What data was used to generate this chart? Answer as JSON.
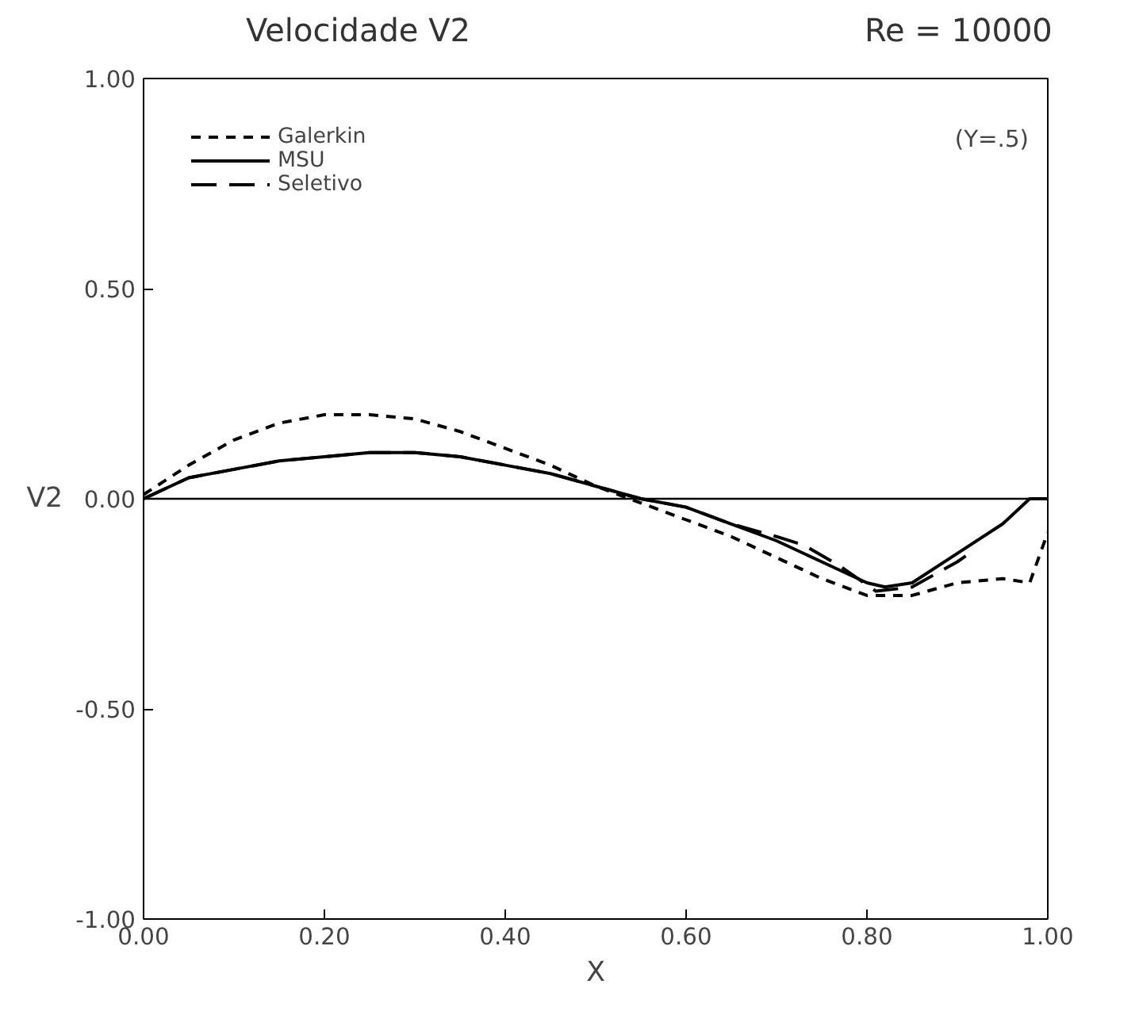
{
  "chart_data": {
    "type": "line",
    "title": "Velocidade V2",
    "subtitle": "Re = 10000",
    "xlabel": "X",
    "ylabel": "V2",
    "annotations": [
      "(Y=.5)"
    ],
    "xlim": [
      0,
      1
    ],
    "ylim": [
      -1,
      1
    ],
    "xticks": [
      {
        "value": 0,
        "label": "0.00"
      },
      {
        "value": 0.2,
        "label": "0.20"
      },
      {
        "value": 0.4,
        "label": "0.40"
      },
      {
        "value": 0.6,
        "label": "0.60"
      },
      {
        "value": 0.8,
        "label": "0.80"
      },
      {
        "value": 1,
        "label": "1.00"
      }
    ],
    "yticks": [
      {
        "value": -1,
        "label": "-1.00"
      },
      {
        "value": -0.5,
        "label": "-0.50"
      },
      {
        "value": 0,
        "label": "0.00"
      },
      {
        "value": 0.5,
        "label": "0.50"
      },
      {
        "value": 1,
        "label": "1.00"
      }
    ],
    "grid": false,
    "legend": "top left",
    "marker": "none",
    "ref_lines": [
      {
        "axis": "y",
        "value": 0,
        "color": "#000000",
        "line_style": "solid"
      }
    ],
    "series": [
      {
        "name": "Galerkin",
        "color": "#000000",
        "line_style": "dotted",
        "x": [
          0,
          0.05,
          0.1,
          0.15,
          0.2,
          0.25,
          0.3,
          0.35,
          0.4,
          0.45,
          0.5,
          0.55,
          0.6,
          0.65,
          0.7,
          0.75,
          0.8,
          0.85,
          0.9,
          0.95,
          0.98,
          1.0
        ],
        "values": [
          0.01,
          0.08,
          0.14,
          0.18,
          0.2,
          0.2,
          0.19,
          0.16,
          0.12,
          0.08,
          0.03,
          -0.01,
          -0.05,
          -0.09,
          -0.14,
          -0.19,
          -0.23,
          -0.23,
          -0.2,
          -0.19,
          -0.2,
          -0.08
        ]
      },
      {
        "name": "MSU",
        "color": "#000000",
        "line_style": "solid",
        "x": [
          0,
          0.05,
          0.1,
          0.15,
          0.2,
          0.25,
          0.3,
          0.35,
          0.4,
          0.45,
          0.5,
          0.55,
          0.6,
          0.65,
          0.7,
          0.75,
          0.8,
          0.82,
          0.85,
          0.9,
          0.95,
          0.98,
          1.0
        ],
        "values": [
          0,
          0.05,
          0.07,
          0.09,
          0.1,
          0.11,
          0.11,
          0.1,
          0.08,
          0.06,
          0.03,
          0.0,
          -0.02,
          -0.06,
          -0.1,
          -0.15,
          -0.2,
          -0.21,
          -0.2,
          -0.13,
          -0.06,
          0.0,
          0.0
        ]
      },
      {
        "name": "Seletivo",
        "color": "#000000",
        "line_style": "dashed",
        "x": [
          0,
          0.05,
          0.1,
          0.15,
          0.2,
          0.25,
          0.3,
          0.35,
          0.4,
          0.45,
          0.5,
          0.55,
          0.6,
          0.65,
          0.7,
          0.73,
          0.77,
          0.81,
          0.85,
          0.9,
          0.92
        ],
        "values": [
          0,
          0.05,
          0.07,
          0.09,
          0.1,
          0.11,
          0.11,
          0.1,
          0.08,
          0.06,
          0.03,
          0.0,
          -0.02,
          -0.06,
          -0.09,
          -0.11,
          -0.16,
          -0.22,
          -0.21,
          -0.15,
          -0.12
        ]
      }
    ]
  }
}
